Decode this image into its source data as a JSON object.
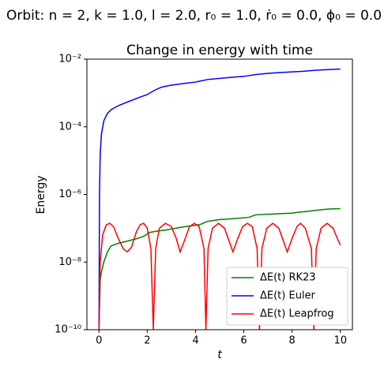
{
  "chart_data": {
    "type": "line",
    "suptitle": "Orbit:   n = 2,  k = 1.0,  l = 2.0,  r₀ = 1.0,  ṙ₀ = 0.0,  ϕ₀ = 0.0",
    "title": "Change in energy with time",
    "xlabel": "t",
    "ylabel": "Energy",
    "xlim": [
      -0.5,
      10.5
    ],
    "xticks": [
      0,
      2,
      4,
      6,
      8,
      10
    ],
    "ylim": [
      1e-10,
      0.01
    ],
    "yscale": "log",
    "yticks": [
      {
        "value": 1e-10,
        "label": "10⁻¹⁰"
      },
      {
        "value": 1e-08,
        "label": "10⁻⁸"
      },
      {
        "value": 1e-06,
        "label": "10⁻⁶"
      },
      {
        "value": 0.0001,
        "label": "10⁻⁴"
      },
      {
        "value": 0.01,
        "label": "10⁻²"
      }
    ],
    "legend": "lower right",
    "series": [
      {
        "name": "ΔE(t) RK23",
        "color": "#008000",
        "x": [
          0,
          0.05,
          0.1,
          0.2,
          0.35,
          0.5,
          0.8,
          1.2,
          1.6,
          1.9,
          2.1,
          2.3,
          2.8,
          3.5,
          3.9,
          4.2,
          4.5,
          5,
          5.5,
          6.2,
          6.5,
          7,
          7.5,
          8,
          8.3,
          8.7,
          9,
          9.5,
          10
        ],
        "values": [
          1e-10,
          3e-09,
          5e-09,
          1e-08,
          2e-08,
          3e-08,
          3.6e-08,
          4.2e-08,
          5e-08,
          6e-08,
          7.5e-08,
          8e-08,
          9e-08,
          1.1e-07,
          1.2e-07,
          1.3e-07,
          1.6e-07,
          1.8e-07,
          1.9e-07,
          2.1e-07,
          2.5e-07,
          2.6e-07,
          2.7e-07,
          2.8e-07,
          3e-07,
          3.2e-07,
          3.4e-07,
          3.7e-07,
          3.8e-07
        ]
      },
      {
        "name": "ΔE(t) Euler",
        "color": "#0000ff",
        "x": [
          0,
          0.02,
          0.05,
          0.1,
          0.2,
          0.35,
          0.5,
          0.8,
          1.2,
          1.7,
          2.0,
          2.3,
          2.6,
          3.0,
          3.5,
          4.0,
          4.5,
          5.0,
          5.5,
          6.0,
          6.5,
          7.0,
          7.5,
          8.0,
          8.5,
          9.0,
          9.5,
          10
        ],
        "values": [
          1e-10,
          1e-06,
          1.5e-05,
          6e-05,
          0.00015,
          0.00025,
          0.00032,
          0.00042,
          0.00055,
          0.00075,
          0.0009,
          0.0012,
          0.0015,
          0.0017,
          0.0019,
          0.0021,
          0.0025,
          0.0027,
          0.0029,
          0.0031,
          0.0035,
          0.0038,
          0.004,
          0.0042,
          0.0044,
          0.0047,
          0.0049,
          0.0051
        ]
      },
      {
        "name": "ΔE(t) Leapfrog",
        "color": "#ff0000",
        "x": [
          0,
          0.05,
          0.15,
          0.3,
          0.45,
          0.6,
          0.8,
          1.0,
          1.17,
          1.35,
          1.55,
          1.7,
          1.85,
          2.0,
          2.15,
          2.25,
          2.35,
          2.5,
          2.75,
          3.0,
          3.2,
          3.36,
          3.55,
          3.75,
          3.95,
          4.15,
          4.35,
          4.43,
          4.52,
          4.7,
          4.95,
          5.2,
          5.4,
          5.55,
          5.75,
          5.95,
          6.15,
          6.35,
          6.55,
          6.65,
          6.75,
          6.95,
          7.2,
          7.45,
          7.65,
          7.8,
          8.0,
          8.2,
          8.35,
          8.55,
          8.8,
          8.9,
          9.0,
          9.2,
          9.45,
          9.7,
          9.9,
          10
        ],
        "values": [
          1e-10,
          1e-08,
          6.3e-08,
          1.26e-07,
          1.4e-07,
          1.12e-07,
          5e-08,
          2.5e-08,
          2e-08,
          2.8e-08,
          7.9e-08,
          1.26e-07,
          1.4e-07,
          1e-07,
          2.5e-08,
          1e-10,
          2.5e-08,
          1e-07,
          1.4e-07,
          1.12e-07,
          5e-08,
          2e-08,
          4.5e-08,
          1.12e-07,
          1.4e-07,
          1.12e-07,
          2.5e-08,
          1e-10,
          2.5e-08,
          1e-07,
          1.4e-07,
          1e-07,
          4e-08,
          2e-08,
          5e-08,
          1.12e-07,
          1.4e-07,
          1.12e-07,
          2.5e-08,
          1e-10,
          2.5e-08,
          1e-07,
          1.4e-07,
          1e-07,
          4e-08,
          2e-08,
          5e-08,
          1.12e-07,
          1.4e-07,
          1e-07,
          2.5e-08,
          1e-10,
          2.5e-08,
          1e-07,
          1.4e-07,
          1e-07,
          4.5e-08,
          3.2e-08
        ]
      }
    ]
  }
}
